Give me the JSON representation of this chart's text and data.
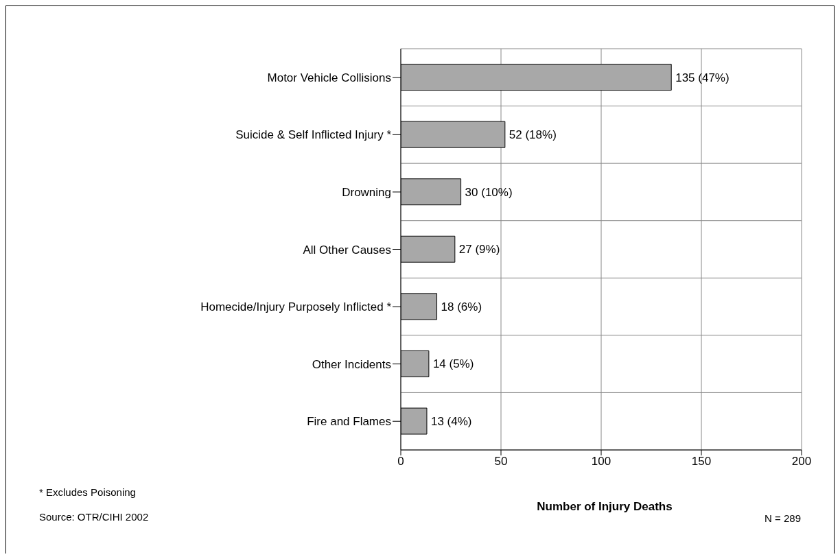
{
  "chart_data": {
    "type": "bar",
    "orientation": "horizontal",
    "xlabel": "Number of Injury Deaths",
    "categories": [
      "Motor Vehicle Collisions",
      "Suicide & Self Inflicted Injury *",
      "Drowning",
      "All Other Causes",
      "Homecide/Injury Purposely Inflicted *",
      "Other Incidents",
      "Fire and Flames"
    ],
    "values": [
      135,
      52,
      30,
      27,
      18,
      14,
      13
    ],
    "value_labels": [
      "135 (47%)",
      "52 (18%)",
      "30 (10%)",
      "27 (9%)",
      "18 (6%)",
      "14 (5%)",
      "13 (4%)"
    ],
    "color": "#a8a8a8",
    "xlim": [
      0,
      200
    ],
    "xticks": [
      0,
      50,
      100,
      150,
      200
    ],
    "grid": true,
    "annotations": [
      "* Excludes Poisoning",
      "Source: OTR/CIHI 2002",
      "N = 289"
    ]
  }
}
